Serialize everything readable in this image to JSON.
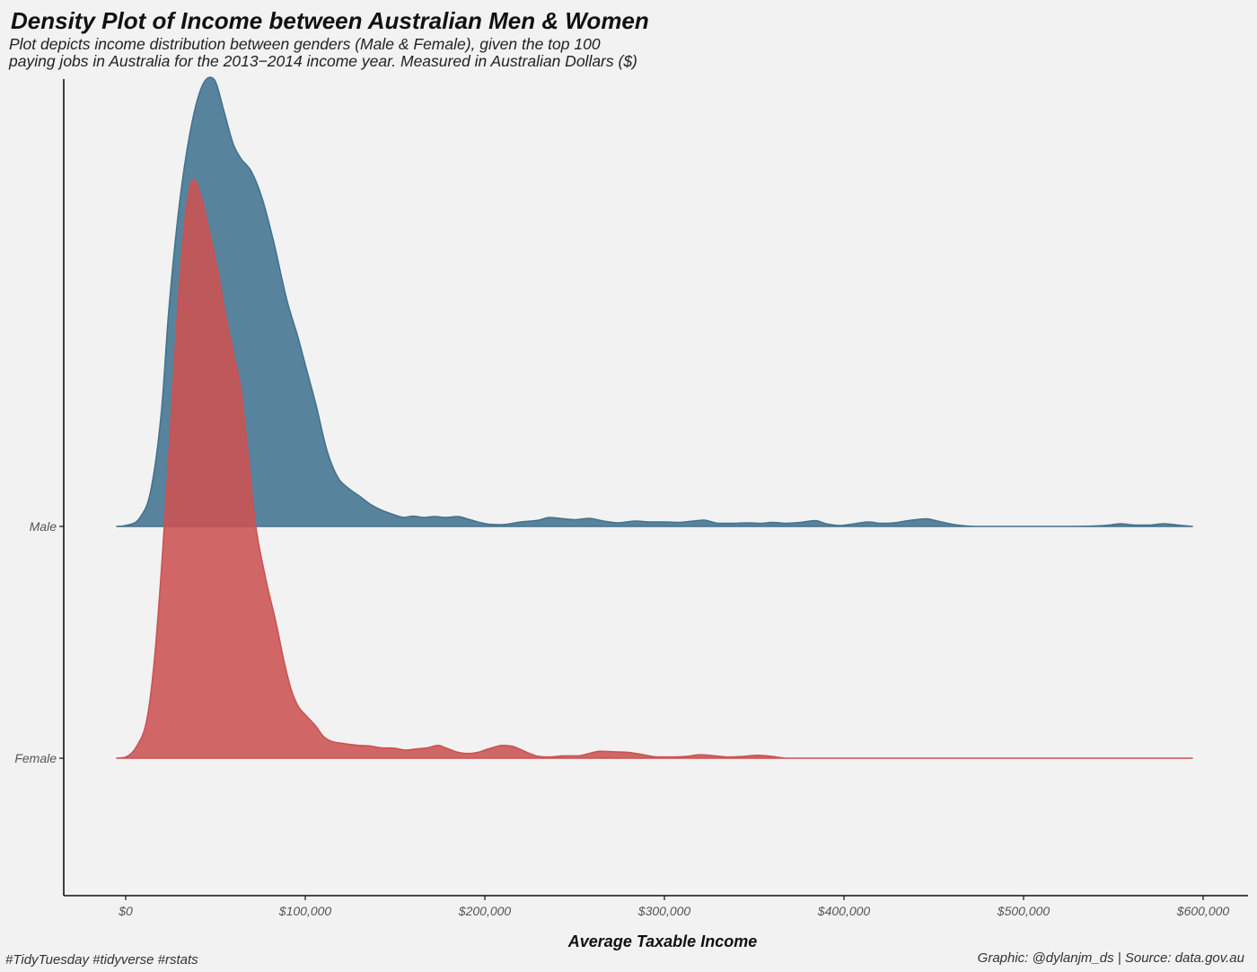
{
  "chart_data": {
    "type": "area",
    "chart_kind": "ridgeline density",
    "title": "Density Plot of Income between Australian Men & Women",
    "subtitle": [
      "Plot depicts income distribution between genders (Male & Female), given the top 100",
      "paying jobs in Australia for the 2013−2014 income year. Measured in Australian Dollars ($)"
    ],
    "xlabel": "Average Taxable Income",
    "ylabel": "",
    "xlim": [
      -35000,
      625000
    ],
    "x_ticks": [
      0,
      100000,
      200000,
      300000,
      400000,
      500000,
      600000
    ],
    "x_tick_labels": [
      "$0",
      "$100,000",
      "$200,000",
      "$300,000",
      "$400,000",
      "$500,000",
      "$600,000"
    ],
    "categories": [
      "Female",
      "Male"
    ],
    "grid": false,
    "legend": "none",
    "series": [
      {
        "name": "Male",
        "color": "#42738f",
        "opacity": 0.88,
        "x": [
          -5000,
          0,
          8000,
          14000,
          20000,
          24000,
          30000,
          36000,
          42000,
          47000,
          50000,
          55000,
          60000,
          64000,
          70000,
          76000,
          82000,
          90000,
          96000,
          100000,
          106000,
          112000,
          118000,
          124000,
          130000,
          136000,
          142000,
          148000,
          155000,
          160000,
          166000,
          172000,
          178000,
          185000,
          190000,
          196000,
          202000,
          210000,
          220000,
          230000,
          236000,
          244000,
          250000,
          258000,
          266000,
          274000,
          284000,
          292000,
          300000,
          308000,
          316000,
          322000,
          330000,
          338000,
          346000,
          354000,
          360000,
          368000,
          376000,
          384000,
          390000,
          398000,
          406000,
          414000,
          420000,
          428000,
          436000,
          446000,
          452000,
          460000,
          468000,
          476000,
          500000,
          520000,
          540000,
          548000,
          554000,
          562000,
          570000,
          578000,
          586000,
          594000
        ],
        "density": [
          0.0,
          0.002,
          0.02,
          0.08,
          0.26,
          0.48,
          0.72,
          0.88,
          0.975,
          1.0,
          0.99,
          0.92,
          0.85,
          0.82,
          0.79,
          0.73,
          0.64,
          0.5,
          0.42,
          0.36,
          0.27,
          0.17,
          0.11,
          0.085,
          0.068,
          0.05,
          0.037,
          0.028,
          0.02,
          0.023,
          0.02,
          0.022,
          0.02,
          0.022,
          0.017,
          0.01,
          0.005,
          0.004,
          0.01,
          0.014,
          0.02,
          0.017,
          0.015,
          0.018,
          0.012,
          0.008,
          0.012,
          0.01,
          0.01,
          0.009,
          0.012,
          0.014,
          0.007,
          0.007,
          0.008,
          0.007,
          0.009,
          0.007,
          0.009,
          0.013,
          0.006,
          0.002,
          0.006,
          0.01,
          0.007,
          0.008,
          0.013,
          0.017,
          0.012,
          0.005,
          0.001,
          0.0,
          0.0,
          0.0,
          0.001,
          0.003,
          0.006,
          0.003,
          0.003,
          0.006,
          0.003,
          0.0
        ]
      },
      {
        "name": "Female",
        "color": "#cc5252",
        "opacity": 0.88,
        "x": [
          -5000,
          0,
          6000,
          12000,
          16000,
          20000,
          24000,
          28000,
          32000,
          36000,
          38000,
          42000,
          48000,
          52000,
          56000,
          60000,
          64000,
          68000,
          72000,
          78000,
          84000,
          88000,
          92000,
          96000,
          100000,
          106000,
          110000,
          114000,
          122000,
          130000,
          136000,
          142000,
          150000,
          156000,
          162000,
          168000,
          174000,
          178000,
          184000,
          190000,
          196000,
          202000,
          210000,
          216000,
          222000,
          230000,
          236000,
          244000,
          252000,
          258000,
          264000,
          272000,
          280000,
          288000,
          296000,
          304000,
          312000,
          320000,
          328000,
          336000,
          344000,
          352000,
          360000,
          368000,
          376000,
          400000,
          450000,
          500000,
          550000,
          594000
        ],
        "density": [
          0.0,
          0.002,
          0.02,
          0.07,
          0.17,
          0.33,
          0.52,
          0.73,
          0.9,
          0.99,
          1.0,
          0.97,
          0.89,
          0.83,
          0.76,
          0.7,
          0.64,
          0.53,
          0.41,
          0.31,
          0.23,
          0.17,
          0.12,
          0.09,
          0.075,
          0.055,
          0.038,
          0.03,
          0.025,
          0.022,
          0.021,
          0.018,
          0.017,
          0.014,
          0.016,
          0.018,
          0.022,
          0.018,
          0.011,
          0.008,
          0.01,
          0.016,
          0.022,
          0.02,
          0.012,
          0.003,
          0.002,
          0.004,
          0.004,
          0.008,
          0.012,
          0.011,
          0.01,
          0.006,
          0.002,
          0.002,
          0.003,
          0.006,
          0.004,
          0.002,
          0.003,
          0.005,
          0.003,
          0.0,
          0.0,
          0.0,
          0.0,
          0.0,
          0.0,
          0.0
        ]
      }
    ]
  },
  "footer": {
    "tag": "#TidyTuesday #tidyverse #rstats",
    "caption": "Graphic: @dylanjm_ds | Source: data.gov.au"
  }
}
